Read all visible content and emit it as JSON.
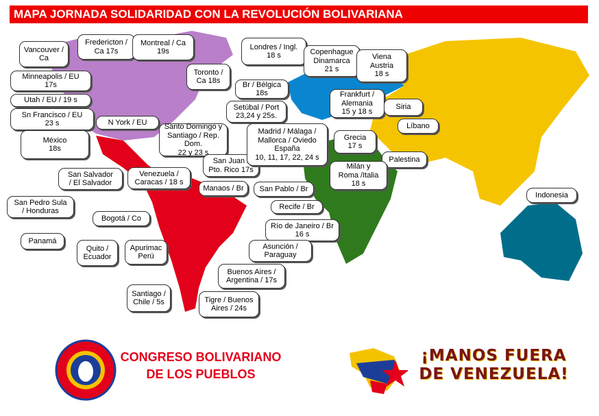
{
  "title": "MAPA JORNADA SOLIDARIDAD CON LA REVOLUCIÓN BOLIVARIANA",
  "colors": {
    "title_bg": "#ee0000",
    "north_america": "#b97fc9",
    "latin_america": "#e2001a",
    "europe": "#0a86d0",
    "asia": "#f5c400",
    "africa": "#2f7a1c",
    "oceania": "#006e8a"
  },
  "callouts": [
    {
      "id": "vancouver",
      "text": "Vancouver /\nCa"
    },
    {
      "id": "fredericton",
      "text": "Fredericton /\nCa 17s"
    },
    {
      "id": "montreal",
      "text": "Montreal / Ca\n19s"
    },
    {
      "id": "toronto",
      "text": "Toronto /\nCa 18s"
    },
    {
      "id": "minneapolis",
      "text": "Minneapolis / EU\n17s"
    },
    {
      "id": "utah",
      "text": "Utah / EU / 19 s"
    },
    {
      "id": "sanfrancisco",
      "text": "Sn Francisco / EU\n23 s"
    },
    {
      "id": "nyork",
      "text": "N York / EU"
    },
    {
      "id": "mexico",
      "text": "México\n18s"
    },
    {
      "id": "santodomingo",
      "text": "Santo Domingo y\nSantiago / Rep. Dom.\n22 y 23 s"
    },
    {
      "id": "sanjuan",
      "text": "San Juan /\nPto. Rico 17s"
    },
    {
      "id": "londres",
      "text": "Londres / Ingl.\n18 s"
    },
    {
      "id": "copenhague",
      "text": "Copenhague\nDinamarca\n21 s"
    },
    {
      "id": "viena",
      "text": "Viena\nAustria\n18 s"
    },
    {
      "id": "belgica",
      "text": "Br / Bélgica\n18s"
    },
    {
      "id": "setubal",
      "text": "Setúbal / Port\n23,24 y 25s."
    },
    {
      "id": "frankfurt",
      "text": "Frankfurt /\nAlemania\n15 y 18 s"
    },
    {
      "id": "siria",
      "text": "Siria"
    },
    {
      "id": "libano",
      "text": "Líbano"
    },
    {
      "id": "madrid",
      "text": "Madrid / Málaga /\nMallorca / Oviedo\nEspaña\n10, 11, 17, 22, 24 s"
    },
    {
      "id": "grecia",
      "text": "Grecia\n17 s"
    },
    {
      "id": "palestina",
      "text": "Palestina"
    },
    {
      "id": "milan",
      "text": "Milán y\nRoma /Italia\n18 s"
    },
    {
      "id": "indonesia",
      "text": "Indonesia"
    },
    {
      "id": "venezuela",
      "text": "Venezuela /\nCaracas / 18 s"
    },
    {
      "id": "sansalvador",
      "text": "San Salvador\n/ El Salvador"
    },
    {
      "id": "sanpedrosula",
      "text": "San Pedro Sula\n/ Honduras"
    },
    {
      "id": "manaos",
      "text": "Manaos / Br"
    },
    {
      "id": "sanpablo",
      "text": "San Pablo / Br"
    },
    {
      "id": "recife",
      "text": "Recife / Br"
    },
    {
      "id": "bogota",
      "text": "Bogotá / Co"
    },
    {
      "id": "riodejaneiro",
      "text": "Río de Janeiro / Br\n16 s"
    },
    {
      "id": "panama",
      "text": "Panamá"
    },
    {
      "id": "quito",
      "text": "Quito /\nEcuador"
    },
    {
      "id": "apurimac",
      "text": "Apurimac\nPerú"
    },
    {
      "id": "asuncion",
      "text": "Asunción /\nParaguay"
    },
    {
      "id": "buenosaires",
      "text": "Buenos Aires /\nArgentina / 17s"
    },
    {
      "id": "santiagochile",
      "text": "Santiago /\nChile / 5s"
    },
    {
      "id": "tigre",
      "text": "Tigre / Buenos\nAires / 24s"
    }
  ],
  "footer": {
    "congreso": "CONGRESO BOLIVARIANO\nDE LOS PUEBLOS",
    "logo_ring_text": "Congreso Bolivariano de los Pueblos",
    "manos": "¡MANOS FUERA\nDE VENEZUELA!"
  }
}
